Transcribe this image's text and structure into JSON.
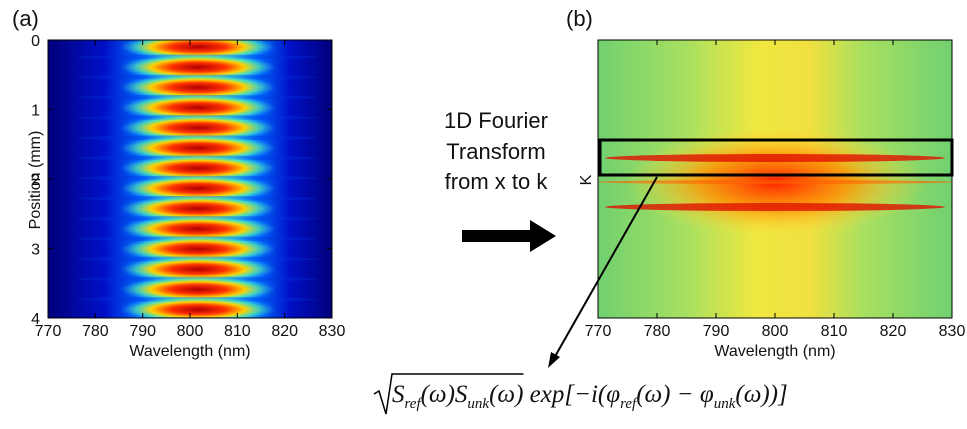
{
  "panels": [
    {
      "label": "(a)",
      "xlabel": "Wavelength (nm)",
      "ylabel": "Position (mm)",
      "xlim": [
        770,
        830
      ],
      "xticks": [
        770,
        780,
        790,
        800,
        810,
        820,
        830
      ],
      "ylim": [
        0,
        4
      ],
      "yticks": [
        0,
        1,
        2,
        3,
        4
      ]
    },
    {
      "label": "(b)",
      "xlabel": "Wavelength (nm)",
      "ylabel": "K",
      "xlim": [
        770,
        830
      ],
      "xticks": [
        770,
        780,
        790,
        800,
        810,
        820,
        830
      ]
    }
  ],
  "arrow_text": [
    "1D Fourier",
    "Transform",
    "from x to k"
  ],
  "equation": [
    {
      "text": "S",
      "sub": false
    },
    {
      "text": "ref",
      "sub": true
    },
    {
      "text": "(ω)",
      "sub": false
    },
    {
      "text": "S",
      "sub": false
    },
    {
      "text": "unk",
      "sub": true
    },
    {
      "text": "(ω)",
      "sub": false
    },
    {
      "text": " exp[−",
      "sub": false
    },
    {
      "text": "i",
      "sub": false
    },
    {
      "text": "(",
      "sub": false
    },
    {
      "text": "φ",
      "sub": false
    },
    {
      "text": "ref",
      "sub": true
    },
    {
      "text": "(ω) − ",
      "sub": false
    },
    {
      "text": "φ",
      "sub": false
    },
    {
      "text": "unk",
      "sub": true
    },
    {
      "text": "(ω))]",
      "sub": false
    }
  ]
}
